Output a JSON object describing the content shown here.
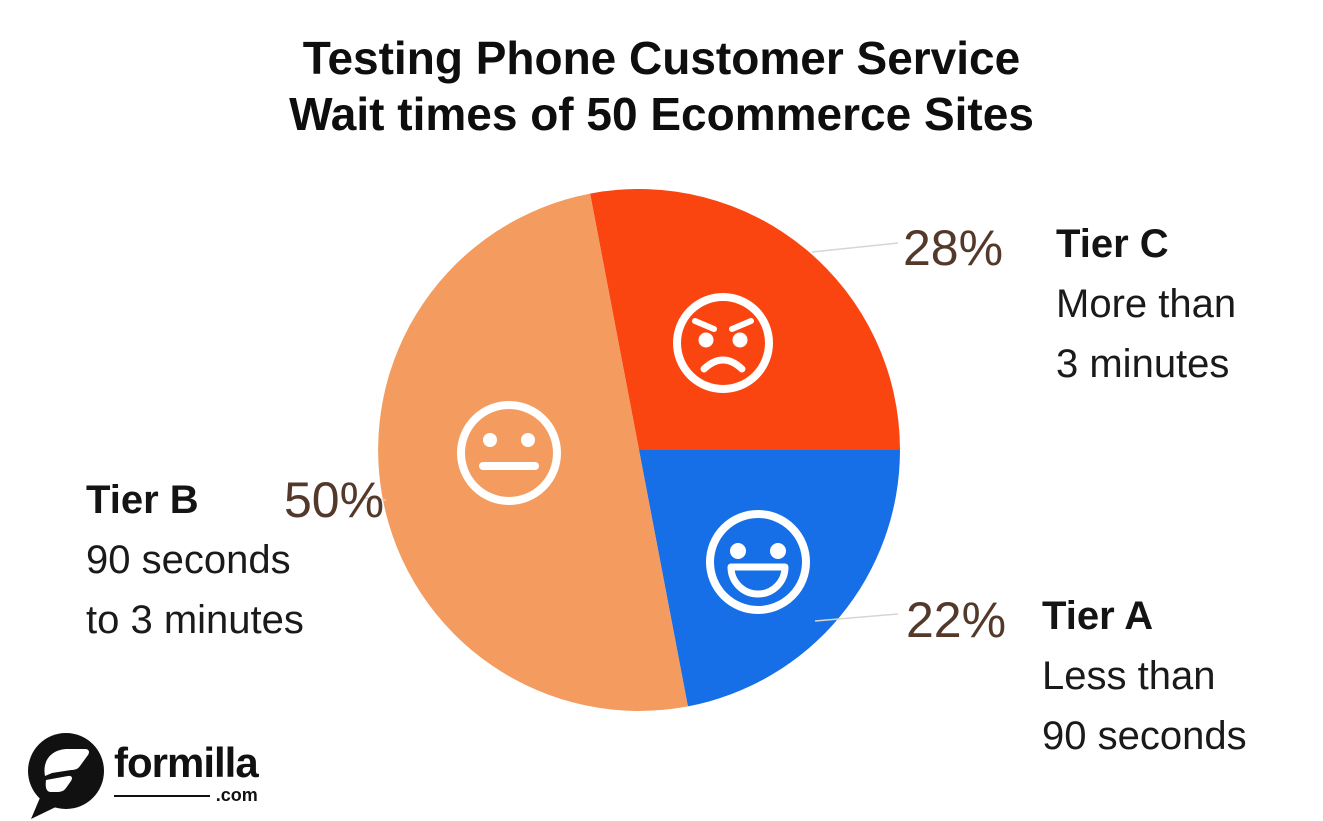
{
  "title": {
    "line1": "Testing Phone Customer Service",
    "line2": "Wait times of 50 Ecommerce Sites"
  },
  "chart_data": {
    "type": "pie",
    "title": "Testing Phone Customer Service Wait times of 50 Ecommerce Sites",
    "sample_size_sites": 50,
    "start_angle_deg": -10.8,
    "labels_layout": "callout",
    "slices": [
      {
        "label": "Tier C",
        "description": "More than 3 minutes",
        "value_pct": 28,
        "color": "#fa4511",
        "face": "angry-face-icon"
      },
      {
        "label": "Tier A",
        "description": "Less than 90 seconds",
        "value_pct": 22,
        "color": "#176fe8",
        "face": "happy-face-icon"
      },
      {
        "label": "Tier B",
        "description": "90 seconds to 3 minutes",
        "value_pct": 50,
        "color": "#f49b60",
        "face": "neutral-face-icon"
      }
    ]
  },
  "labels": {
    "tier_c": {
      "pct": "28%",
      "name": "Tier C",
      "line1": "More than",
      "line2": "3 minutes"
    },
    "tier_a": {
      "pct": "22%",
      "name": "Tier A",
      "line1": "Less than",
      "line2": "90 seconds"
    },
    "tier_b": {
      "pct": "50%",
      "name": "Tier B",
      "line1": "90 seconds",
      "line2": "to 3 minutes"
    }
  },
  "logo": {
    "brand": "formilla",
    "tld": ".com"
  },
  "colors": {
    "red": "#fa4511",
    "blue": "#176fe8",
    "orange": "#f49b60",
    "pct_text": "#54392b",
    "body_text": "#141414",
    "leader_line": "#d9d5cf",
    "face": "#ffffff"
  }
}
